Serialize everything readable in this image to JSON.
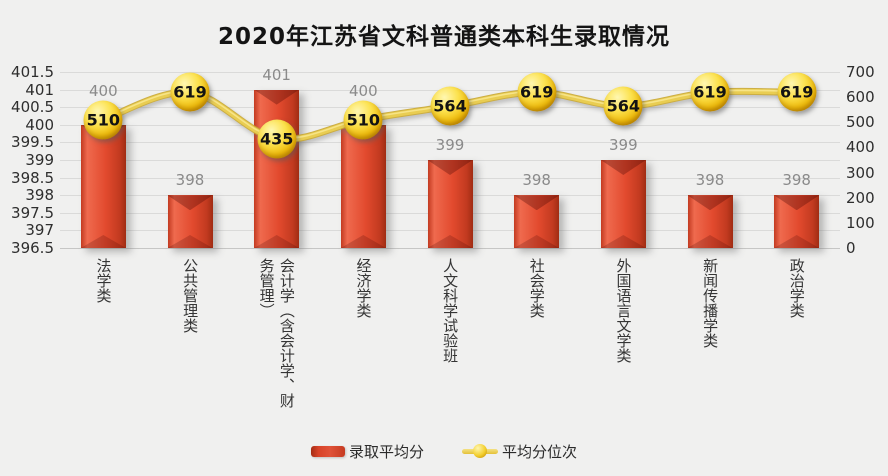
{
  "chart_data": {
    "type": "combo-bar-line",
    "title": "2020年江苏省文科普通类本科生录取情况",
    "categories": [
      "法学类",
      "公共管理类",
      "会计学（含会计学、财务管理）",
      "经济学类",
      "人文科学试验班",
      "社会学类",
      "外国语言文学类",
      "新闻传播学类",
      "政治学类"
    ],
    "series": [
      {
        "name": "录取平均分",
        "type": "bar",
        "axis": "left",
        "color": "#df4a2e",
        "values": [
          400,
          398,
          401,
          400,
          399,
          398,
          399,
          398,
          398
        ]
      },
      {
        "name": "平均分位次",
        "type": "line",
        "axis": "right",
        "color": "#e9cd52",
        "values": [
          510,
          619,
          435,
          510,
          564,
          619,
          564,
          619,
          619
        ]
      }
    ],
    "left_axis": {
      "min": 396.5,
      "max": 401.5,
      "step": 0.5,
      "ticks": [
        "401.5",
        "401",
        "400.5",
        "400",
        "399.5",
        "399",
        "398.5",
        "398",
        "397.5",
        "397",
        "396.5"
      ]
    },
    "right_axis": {
      "min": 0,
      "max": 700,
      "step": 100,
      "ticks": [
        "700",
        "600",
        "500",
        "400",
        "300",
        "200",
        "100",
        "0"
      ]
    },
    "legend_position": "bottom",
    "grid": "horizontal"
  }
}
